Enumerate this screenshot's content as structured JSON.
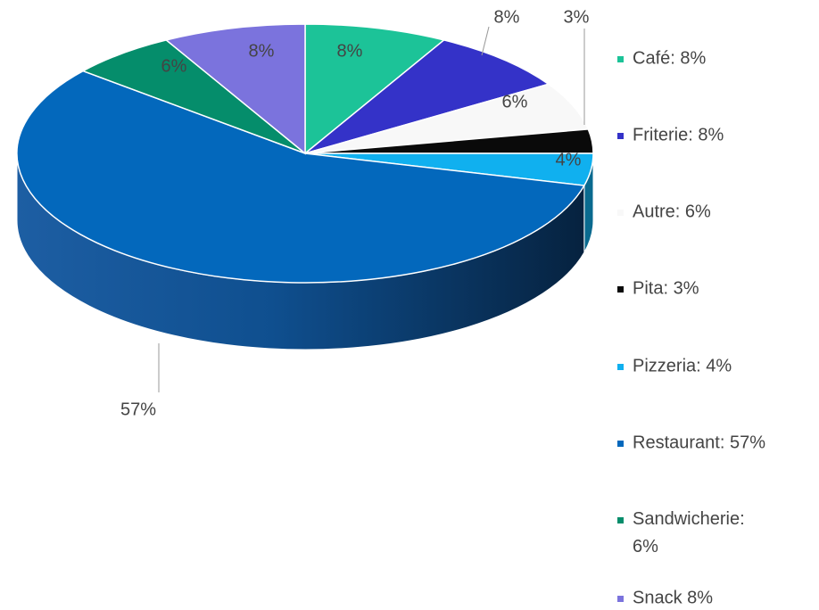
{
  "chart_data": {
    "type": "pie3d",
    "categories": [
      "Café",
      "Friterie",
      "Autre",
      "Pita",
      "Pizzeria",
      "Restaurant",
      "Sandwicherie",
      "Snack"
    ],
    "values": [
      8,
      8,
      6,
      3,
      4,
      57,
      6,
      8
    ],
    "value_labels": [
      "8%",
      "8%",
      "6%",
      "3%",
      "4%",
      "57%",
      "6%",
      "8%"
    ],
    "legend_labels": [
      "Café: 8%",
      "Friterie: 8%",
      "Autre: 6%",
      "Pita: 3%",
      "Pizzeria: 4%",
      "Restaurant: 57%",
      "Sandwicherie: 6%",
      "Snack 8%"
    ],
    "colors": [
      "#1cc398",
      "#3432c8",
      "#f8f8f8",
      "#0a0a0a",
      "#10b0ef",
      "#0368bc",
      "#058d6b",
      "#7b73dd"
    ],
    "legend": "right"
  }
}
